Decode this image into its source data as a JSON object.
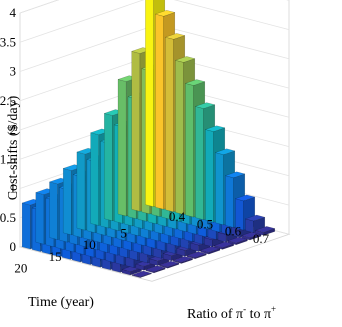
{
  "chart_data": {
    "type": "bar3d",
    "zlabel": "Cost-shifts ($/day)",
    "xlabel": "Time (year)",
    "ylabel_prefix": "Ratio of ",
    "ylabel_pi": "π",
    "ylabel_minus": "-",
    "ylabel_to": " to ",
    "ylabel_plus": "+",
    "zticks": [
      "0",
      "0.5",
      "1",
      "1.5",
      "2",
      "2.5",
      "3",
      "3.5",
      "4"
    ],
    "xticks": [
      "20",
      "15",
      "10",
      "5"
    ],
    "yticks": [
      "0.4",
      "0.5",
      "0.6",
      "0.7"
    ],
    "zlim": [
      0,
      4
    ],
    "grid": true,
    "colormap": "parula",
    "rows": [
      {
        "time": 1,
        "values": [
          3.65,
          3.3,
          2.95,
          2.6,
          2.25,
          1.9,
          1.55,
          1.2,
          0.85,
          0.5,
          0.2,
          0.05
        ]
      },
      {
        "time": 3,
        "values": [
          2.7,
          2.45,
          2.15,
          1.9,
          1.65,
          1.4,
          1.15,
          0.9,
          0.65,
          0.4,
          0.15,
          0.04
        ]
      },
      {
        "time": 5,
        "values": [
          2.3,
          2.05,
          1.85,
          1.65,
          1.45,
          1.25,
          1.0,
          0.8,
          0.55,
          0.35,
          0.13,
          0.03
        ]
      },
      {
        "time": 7,
        "values": [
          1.8,
          1.65,
          1.5,
          1.35,
          1.2,
          1.05,
          0.85,
          0.7,
          0.5,
          0.3,
          0.12,
          0.03
        ]
      },
      {
        "time": 9,
        "values": [
          1.55,
          1.45,
          1.35,
          1.2,
          1.1,
          0.95,
          0.8,
          0.65,
          0.45,
          0.28,
          0.11,
          0.03
        ]
      },
      {
        "time": 11,
        "values": [
          1.3,
          1.22,
          1.12,
          1.02,
          0.92,
          0.8,
          0.68,
          0.55,
          0.4,
          0.25,
          0.1,
          0.02
        ]
      },
      {
        "time": 13,
        "values": [
          1.1,
          1.04,
          0.96,
          0.88,
          0.8,
          0.7,
          0.6,
          0.5,
          0.36,
          0.22,
          0.09,
          0.02
        ]
      },
      {
        "time": 15,
        "values": [
          0.95,
          0.9,
          0.84,
          0.77,
          0.7,
          0.62,
          0.53,
          0.44,
          0.32,
          0.2,
          0.08,
          0.02
        ]
      },
      {
        "time": 17,
        "values": [
          0.85,
          0.8,
          0.75,
          0.69,
          0.62,
          0.55,
          0.47,
          0.39,
          0.29,
          0.18,
          0.07,
          0.02
        ]
      },
      {
        "time": 20,
        "values": [
          0.75,
          0.71,
          0.66,
          0.61,
          0.55,
          0.49,
          0.42,
          0.35,
          0.26,
          0.16,
          0.06,
          0.01
        ]
      }
    ]
  }
}
